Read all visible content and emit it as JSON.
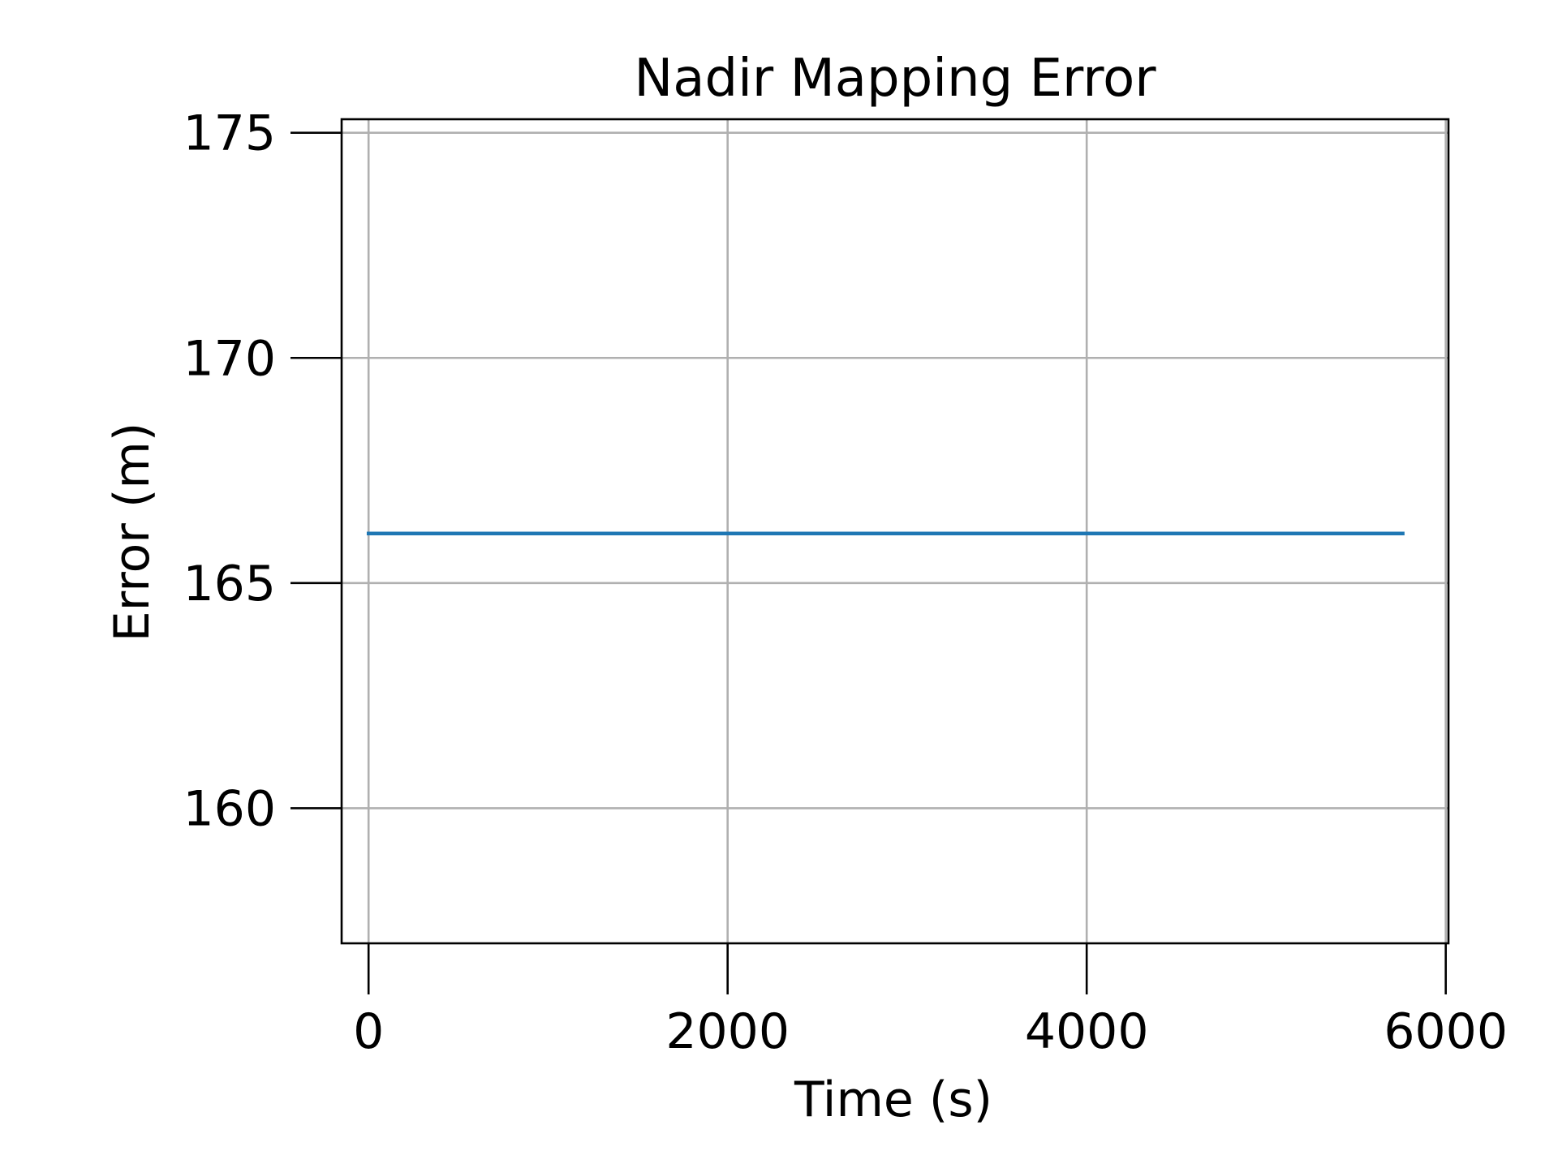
{
  "chart_data": {
    "type": "line",
    "title": "Nadir Mapping Error",
    "xlabel": "Time (s)",
    "ylabel": "Error (m)",
    "xlim": [
      -150,
      6015
    ],
    "ylim": [
      157,
      175.3
    ],
    "x_ticks": [
      0,
      2000,
      4000,
      6000
    ],
    "y_ticks": [
      160,
      165,
      170,
      175
    ],
    "x_tick_labels": [
      "0",
      "2000",
      "4000",
      "6000"
    ],
    "y_tick_labels": [
      "160",
      "165",
      "170",
      "175"
    ],
    "grid": true,
    "series": [
      {
        "color": "#1f77b4",
        "x": [
          0,
          1000,
          2000,
          3000,
          4000,
          5000,
          5760
        ],
        "y": [
          166.1,
          166.1,
          166.1,
          166.1,
          166.1,
          166.1,
          166.1
        ]
      }
    ]
  }
}
